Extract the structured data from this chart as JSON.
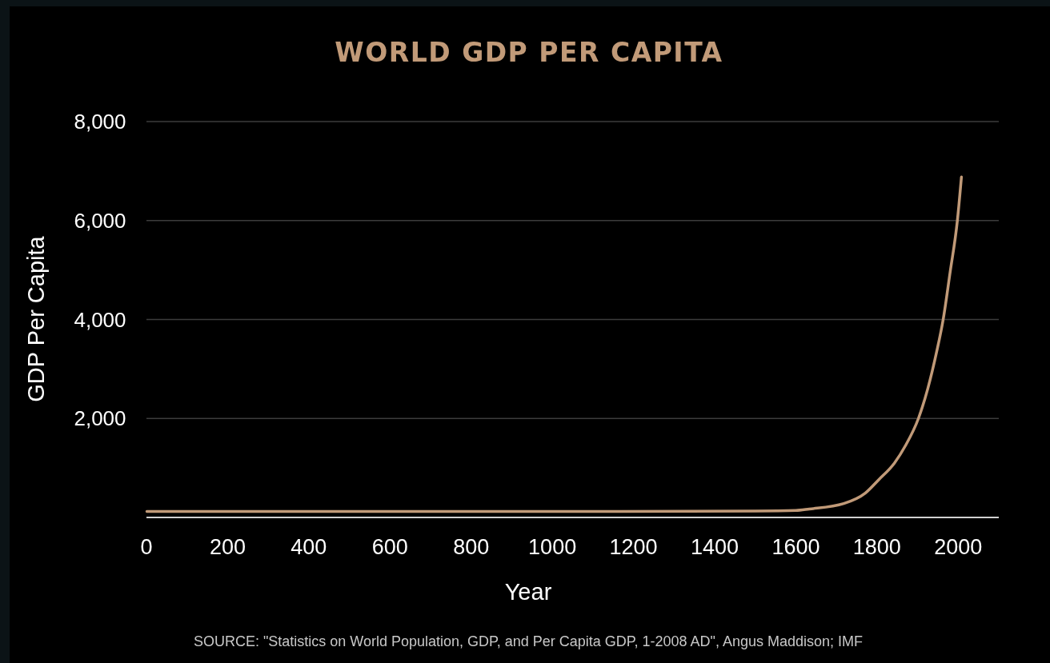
{
  "chart_data": {
    "type": "line",
    "title": "WORLD GDP PER CAPITA",
    "xlabel": "Year",
    "ylabel": "GDP Per Capita",
    "annotations": [
      "SOURCE:  \"Statistics on World Population, GDP, and Per Capita GDP, 1-2008 AD\", Angus Maddison; IMF"
    ],
    "x": [
      1,
      500,
      1000,
      1500,
      1600,
      1633,
      1718,
      1771,
      1804,
      1843,
      1870,
      1902,
      1925,
      1947,
      1963,
      1980,
      1998,
      2008
    ],
    "series": [
      {
        "color": "#c19a78",
        "values": [
          120,
          120,
          120,
          130,
          140,
          170,
          280,
          490,
          760,
          1100,
          1450,
          2000,
          2600,
          3350,
          4000,
          4950,
          6000,
          6880
        ]
      }
    ],
    "xlim": [
      0,
      2100
    ],
    "xticks": [
      0,
      200,
      400,
      600,
      800,
      1000,
      1200,
      1400,
      1600,
      1800,
      2000
    ],
    "ylim": [
      0,
      8000
    ],
    "yticks": [
      {
        "value": 2000,
        "label": "2,000"
      },
      {
        "value": 4000,
        "label": "4,000"
      },
      {
        "value": 6000,
        "label": "6,000"
      },
      {
        "value": 8000,
        "label": "8,000"
      }
    ],
    "grid": "y",
    "marker": "none",
    "line_style": "solid"
  }
}
